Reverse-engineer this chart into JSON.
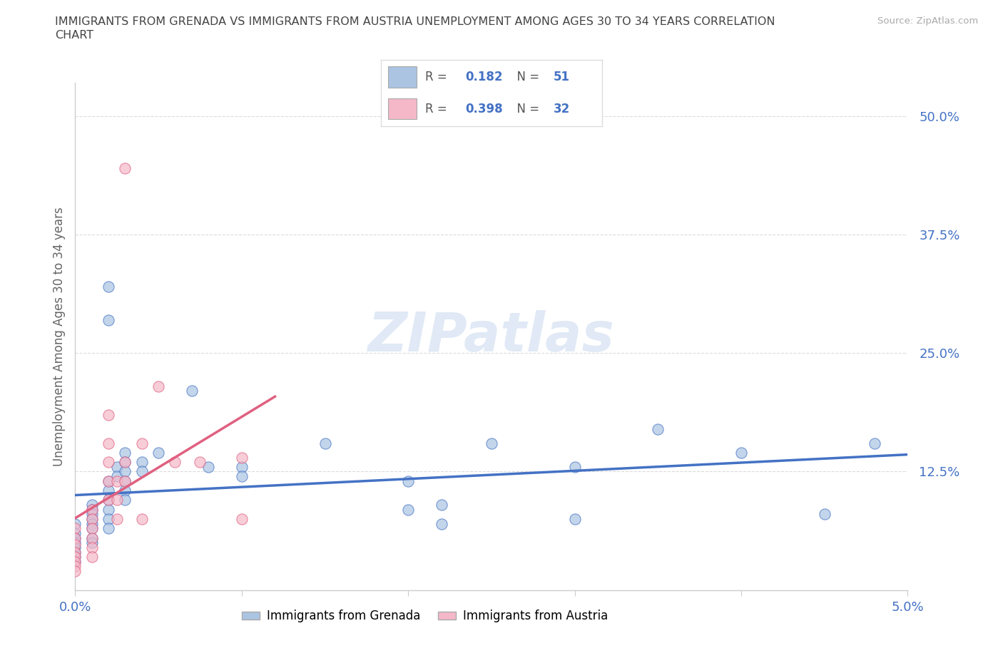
{
  "title_line1": "IMMIGRANTS FROM GRENADA VS IMMIGRANTS FROM AUSTRIA UNEMPLOYMENT AMONG AGES 30 TO 34 YEARS CORRELATION",
  "title_line2": "CHART",
  "source": "Source: ZipAtlas.com",
  "ylabel_text": "Unemployment Among Ages 30 to 34 years",
  "x_min": 0.0,
  "x_max": 0.05,
  "y_min": 0.0,
  "y_max": 0.535,
  "y_ticks": [
    0.0,
    0.125,
    0.25,
    0.375,
    0.5
  ],
  "y_tick_labels": [
    "",
    "12.5%",
    "25.0%",
    "37.5%",
    "50.0%"
  ],
  "x_ticks": [
    0.0,
    0.01,
    0.02,
    0.03,
    0.04,
    0.05
  ],
  "x_tick_labels": [
    "0.0%",
    "",
    "",
    "",
    "",
    "5.0%"
  ],
  "grenada_color": "#aac4e2",
  "austria_color": "#f5b8c8",
  "grenada_R": "0.182",
  "grenada_N": "51",
  "austria_R": "0.398",
  "austria_N": "32",
  "grenada_line_color": "#4472c4",
  "austria_line_color": "#e06080",
  "legend_text_color": "#4472c4",
  "tick_color": "#4472c4",
  "ylabel_color": "#666666",
  "watermark": "ZIPatlas",
  "background_color": "#ffffff",
  "grenada_scatter": [
    [
      0.0,
      0.07
    ],
    [
      0.0,
      0.06
    ],
    [
      0.0,
      0.055
    ],
    [
      0.0,
      0.05
    ],
    [
      0.0,
      0.045
    ],
    [
      0.0,
      0.04
    ],
    [
      0.0,
      0.035
    ],
    [
      0.0,
      0.03
    ],
    [
      0.001,
      0.09
    ],
    [
      0.001,
      0.085
    ],
    [
      0.001,
      0.08
    ],
    [
      0.001,
      0.075
    ],
    [
      0.001,
      0.07
    ],
    [
      0.001,
      0.065
    ],
    [
      0.001,
      0.055
    ],
    [
      0.001,
      0.05
    ],
    [
      0.002,
      0.32
    ],
    [
      0.002,
      0.285
    ],
    [
      0.002,
      0.115
    ],
    [
      0.002,
      0.105
    ],
    [
      0.002,
      0.095
    ],
    [
      0.002,
      0.085
    ],
    [
      0.002,
      0.075
    ],
    [
      0.002,
      0.065
    ],
    [
      0.0025,
      0.13
    ],
    [
      0.0025,
      0.12
    ],
    [
      0.003,
      0.145
    ],
    [
      0.003,
      0.135
    ],
    [
      0.003,
      0.125
    ],
    [
      0.003,
      0.115
    ],
    [
      0.003,
      0.105
    ],
    [
      0.003,
      0.095
    ],
    [
      0.004,
      0.135
    ],
    [
      0.004,
      0.125
    ],
    [
      0.005,
      0.145
    ],
    [
      0.007,
      0.21
    ],
    [
      0.008,
      0.13
    ],
    [
      0.01,
      0.13
    ],
    [
      0.01,
      0.12
    ],
    [
      0.015,
      0.155
    ],
    [
      0.02,
      0.115
    ],
    [
      0.02,
      0.085
    ],
    [
      0.022,
      0.09
    ],
    [
      0.022,
      0.07
    ],
    [
      0.025,
      0.155
    ],
    [
      0.03,
      0.13
    ],
    [
      0.03,
      0.075
    ],
    [
      0.035,
      0.17
    ],
    [
      0.04,
      0.145
    ],
    [
      0.045,
      0.08
    ],
    [
      0.048,
      0.155
    ]
  ],
  "austria_scatter": [
    [
      0.0,
      0.065
    ],
    [
      0.0,
      0.055
    ],
    [
      0.0,
      0.048
    ],
    [
      0.0,
      0.04
    ],
    [
      0.0,
      0.035
    ],
    [
      0.0,
      0.03
    ],
    [
      0.0,
      0.025
    ],
    [
      0.0,
      0.02
    ],
    [
      0.001,
      0.085
    ],
    [
      0.001,
      0.075
    ],
    [
      0.001,
      0.065
    ],
    [
      0.001,
      0.055
    ],
    [
      0.001,
      0.045
    ],
    [
      0.001,
      0.035
    ],
    [
      0.002,
      0.185
    ],
    [
      0.002,
      0.155
    ],
    [
      0.002,
      0.135
    ],
    [
      0.002,
      0.115
    ],
    [
      0.002,
      0.095
    ],
    [
      0.0025,
      0.115
    ],
    [
      0.0025,
      0.095
    ],
    [
      0.0025,
      0.075
    ],
    [
      0.003,
      0.445
    ],
    [
      0.003,
      0.135
    ],
    [
      0.003,
      0.115
    ],
    [
      0.004,
      0.155
    ],
    [
      0.004,
      0.075
    ],
    [
      0.005,
      0.215
    ],
    [
      0.006,
      0.135
    ],
    [
      0.0075,
      0.135
    ],
    [
      0.01,
      0.14
    ],
    [
      0.01,
      0.075
    ]
  ]
}
